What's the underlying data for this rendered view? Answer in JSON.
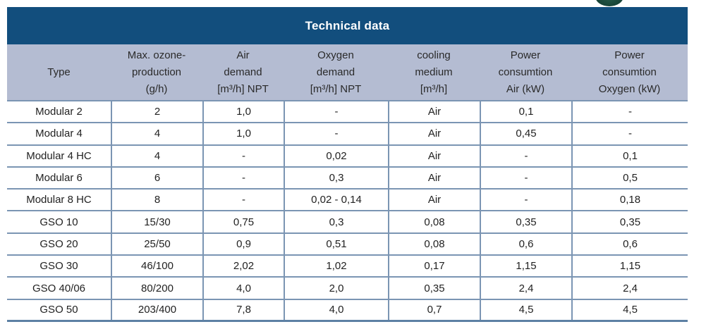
{
  "colors": {
    "title_bar_bg": "#124e7d",
    "title_text": "#ffffff",
    "header_band_bg": "#b4bcd2",
    "grid_line": "#7b95b3",
    "bottom_border": "#5d80a4",
    "body_text": "#222222",
    "logo_fragment_green": "#1b4a3c"
  },
  "table": {
    "title": "Technical data",
    "columns": [
      {
        "id": "type",
        "lines": [
          "Type"
        ]
      },
      {
        "id": "max-ozone-production",
        "lines": [
          "Max. ozone-",
          "production",
          "(g/h)"
        ]
      },
      {
        "id": "air-demand",
        "lines": [
          "Air",
          "demand",
          "[m³/h] NPT"
        ]
      },
      {
        "id": "oxygen-demand",
        "lines": [
          "Oxygen",
          "demand",
          "[m³/h] NPT"
        ]
      },
      {
        "id": "cooling-medium",
        "lines": [
          "cooling",
          "medium",
          "[m³/h]"
        ]
      },
      {
        "id": "power-consumtion-air",
        "lines": [
          "Power",
          "consumtion",
          "Air (kW)"
        ]
      },
      {
        "id": "power-consumtion-oxygen",
        "lines": [
          "Power",
          "consumtion",
          "Oxygen (kW)"
        ]
      }
    ],
    "rows": [
      [
        "Modular 2",
        "2",
        "1,0",
        "-",
        "Air",
        "0,1",
        "-"
      ],
      [
        "Modular 4",
        "4",
        "1,0",
        "-",
        "Air",
        "0,45",
        "-"
      ],
      [
        "Modular 4 HC",
        "4",
        "-",
        "0,02",
        "Air",
        "-",
        "0,1"
      ],
      [
        "Modular 6",
        "6",
        "-",
        "0,3",
        "Air",
        "-",
        "0,5"
      ],
      [
        "Modular 8 HC",
        "8",
        "-",
        "0,02 - 0,14",
        "Air",
        "-",
        "0,18"
      ],
      [
        "GSO 10",
        "15/30",
        "0,75",
        "0,3",
        "0,08",
        "0,35",
        "0,35"
      ],
      [
        "GSO 20",
        "25/50",
        "0,9",
        "0,51",
        "0,08",
        "0,6",
        "0,6"
      ],
      [
        "GSO 30",
        "46/100",
        "2,02",
        "1,02",
        "0,17",
        "1,15",
        "1,15"
      ],
      [
        "GSO 40/06",
        "80/200",
        "4,0",
        "2,0",
        "0,35",
        "2,4",
        "2,4"
      ],
      [
        "GSO 50",
        "203/400",
        "7,8",
        "4,0",
        "0,7",
        "4,5",
        "4,5"
      ]
    ]
  }
}
